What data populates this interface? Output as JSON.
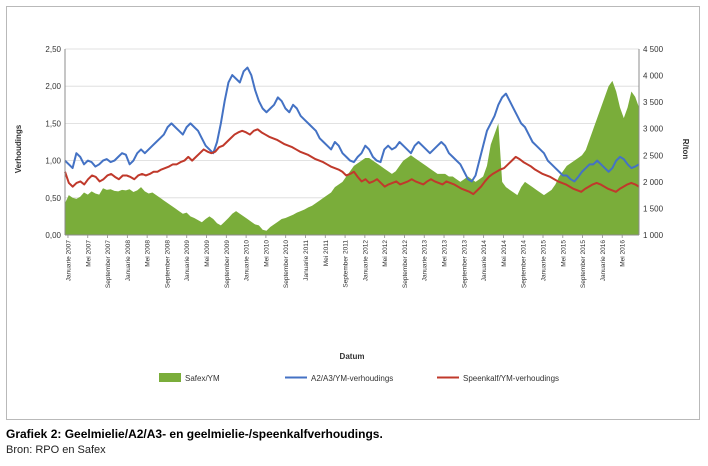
{
  "caption": "Grafiek 2: Geelmielie/A2/A3- en geelmielie-/speenkalfverhoudings.",
  "source": "Bron: RPO en Safex",
  "chart_data": {
    "type": "line",
    "title": "",
    "xlabel": "Datum",
    "ylabel_left": "Verhoudings",
    "ylabel_right": "R/ton",
    "ylim_left": [
      0,
      2.5
    ],
    "ylim_right": [
      1000,
      4500
    ],
    "yticks_left": [
      "0,00",
      "0,50",
      "1,00",
      "1,50",
      "2,00",
      "2,50"
    ],
    "yticks_right": [
      "1 000",
      "1 500",
      "2 000",
      "2 500",
      "3 000",
      "3 500",
      "4 000",
      "4 500"
    ],
    "grid": true,
    "legend_position": "bottom",
    "x_tick_labels": [
      "Januarie 2007",
      "Mei 2007",
      "September 2007",
      "Januarie 2008",
      "Mei 2008",
      "September 2008",
      "Januarie 2009",
      "Mei 2009",
      "September 2009",
      "Januarie 2010",
      "Mei 2010",
      "September 2010",
      "Januarie 2011",
      "Mei 2011",
      "September 2011",
      "Januarie 2012",
      "Mei 2012",
      "September 2012",
      "Januarie 2013",
      "Mei 2013",
      "September 2013",
      "Januarie 2014",
      "Mei 2014",
      "September 2014",
      "Januarie 2015",
      "Mei 2015",
      "September 2015",
      "Januarie 2016",
      "Mei 2016"
    ],
    "series": [
      {
        "name": "Safex/YM",
        "type": "area",
        "axis": "right",
        "color": "#7aad3a",
        "values": [
          1600,
          1750,
          1700,
          1680,
          1720,
          1800,
          1760,
          1820,
          1780,
          1760,
          1880,
          1850,
          1860,
          1830,
          1820,
          1850,
          1840,
          1860,
          1810,
          1840,
          1900,
          1820,
          1780,
          1800,
          1750,
          1700,
          1650,
          1600,
          1550,
          1500,
          1450,
          1400,
          1420,
          1350,
          1320,
          1280,
          1240,
          1300,
          1350,
          1300,
          1220,
          1180,
          1250,
          1320,
          1400,
          1450,
          1400,
          1350,
          1300,
          1250,
          1200,
          1180,
          1100,
          1080,
          1150,
          1200,
          1250,
          1300,
          1320,
          1350,
          1380,
          1420,
          1450,
          1480,
          1520,
          1550,
          1600,
          1650,
          1700,
          1750,
          1800,
          1900,
          1950,
          2000,
          2100,
          2200,
          2300,
          2350,
          2400,
          2450,
          2450,
          2400,
          2350,
          2300,
          2250,
          2200,
          2150,
          2200,
          2300,
          2400,
          2450,
          2500,
          2450,
          2400,
          2350,
          2300,
          2250,
          2200,
          2150,
          2150,
          2150,
          2100,
          2100,
          2050,
          2000,
          2050,
          2100,
          2050,
          2000,
          2050,
          2100,
          2300,
          2700,
          2900,
          3100,
          2000,
          1900,
          1850,
          1800,
          1750,
          1900,
          2000,
          1950,
          1900,
          1850,
          1800,
          1750,
          1800,
          1850,
          1950,
          2100,
          2200,
          2300,
          2350,
          2400,
          2450,
          2500,
          2600,
          2800,
          3000,
          3200,
          3400,
          3600,
          3800,
          3900,
          3700,
          3400,
          3200,
          3400,
          3700,
          3600,
          3400
        ]
      },
      {
        "name": "A2/A3/YM-verhoudings",
        "type": "line",
        "axis": "left",
        "color": "#4472c4",
        "values": [
          1.0,
          0.95,
          0.9,
          1.1,
          1.05,
          0.95,
          1.0,
          0.98,
          0.92,
          0.95,
          1.0,
          1.02,
          0.98,
          1.0,
          1.05,
          1.1,
          1.08,
          0.95,
          1.0,
          1.1,
          1.15,
          1.1,
          1.15,
          1.2,
          1.25,
          1.3,
          1.35,
          1.45,
          1.5,
          1.45,
          1.4,
          1.35,
          1.45,
          1.5,
          1.45,
          1.4,
          1.3,
          1.2,
          1.15,
          1.1,
          1.25,
          1.5,
          1.8,
          2.05,
          2.15,
          2.1,
          2.05,
          2.2,
          2.25,
          2.15,
          1.95,
          1.8,
          1.7,
          1.65,
          1.7,
          1.75,
          1.85,
          1.8,
          1.7,
          1.65,
          1.75,
          1.7,
          1.6,
          1.55,
          1.5,
          1.45,
          1.4,
          1.3,
          1.25,
          1.2,
          1.15,
          1.25,
          1.2,
          1.1,
          1.05,
          1.0,
          0.98,
          1.05,
          1.1,
          1.2,
          1.15,
          1.05,
          1.0,
          0.98,
          1.15,
          1.2,
          1.15,
          1.18,
          1.25,
          1.2,
          1.15,
          1.1,
          1.2,
          1.25,
          1.2,
          1.15,
          1.1,
          1.15,
          1.2,
          1.25,
          1.2,
          1.1,
          1.05,
          1.0,
          0.95,
          0.85,
          0.75,
          0.72,
          0.8,
          1.0,
          1.2,
          1.4,
          1.5,
          1.6,
          1.75,
          1.85,
          1.9,
          1.8,
          1.7,
          1.6,
          1.5,
          1.45,
          1.35,
          1.25,
          1.2,
          1.15,
          1.1,
          1.0,
          0.95,
          0.9,
          0.85,
          0.8,
          0.8,
          0.75,
          0.72,
          0.78,
          0.85,
          0.9,
          0.95,
          0.95,
          1.0,
          0.95,
          0.9,
          0.85,
          0.9,
          1.0,
          1.05,
          1.02,
          0.95,
          0.9,
          0.92,
          0.95
        ]
      },
      {
        "name": "Speenkalf/YM-verhoudings",
        "type": "line",
        "axis": "left",
        "color": "#c0392b",
        "values": [
          0.85,
          0.7,
          0.65,
          0.7,
          0.72,
          0.68,
          0.75,
          0.8,
          0.78,
          0.72,
          0.75,
          0.8,
          0.82,
          0.78,
          0.75,
          0.8,
          0.8,
          0.78,
          0.75,
          0.8,
          0.82,
          0.8,
          0.82,
          0.85,
          0.85,
          0.88,
          0.9,
          0.92,
          0.95,
          0.95,
          0.98,
          1.0,
          1.05,
          1.0,
          1.05,
          1.1,
          1.15,
          1.12,
          1.1,
          1.12,
          1.18,
          1.2,
          1.25,
          1.3,
          1.35,
          1.38,
          1.4,
          1.38,
          1.35,
          1.4,
          1.42,
          1.38,
          1.35,
          1.32,
          1.3,
          1.28,
          1.25,
          1.22,
          1.2,
          1.18,
          1.15,
          1.12,
          1.1,
          1.08,
          1.05,
          1.02,
          1.0,
          0.98,
          0.95,
          0.92,
          0.9,
          0.88,
          0.85,
          0.8,
          0.82,
          0.85,
          0.78,
          0.72,
          0.75,
          0.7,
          0.72,
          0.75,
          0.7,
          0.65,
          0.68,
          0.7,
          0.72,
          0.68,
          0.7,
          0.72,
          0.75,
          0.72,
          0.7,
          0.68,
          0.72,
          0.75,
          0.72,
          0.7,
          0.68,
          0.72,
          0.7,
          0.68,
          0.65,
          0.62,
          0.6,
          0.58,
          0.55,
          0.6,
          0.65,
          0.72,
          0.78,
          0.82,
          0.85,
          0.88,
          0.9,
          0.95,
          1.0,
          1.05,
          1.02,
          0.98,
          0.95,
          0.92,
          0.88,
          0.85,
          0.82,
          0.8,
          0.78,
          0.75,
          0.72,
          0.7,
          0.68,
          0.65,
          0.62,
          0.6,
          0.58,
          0.62,
          0.65,
          0.68,
          0.7,
          0.68,
          0.65,
          0.62,
          0.6,
          0.58,
          0.62,
          0.65,
          0.68,
          0.7,
          0.68,
          0.65
        ]
      }
    ]
  }
}
